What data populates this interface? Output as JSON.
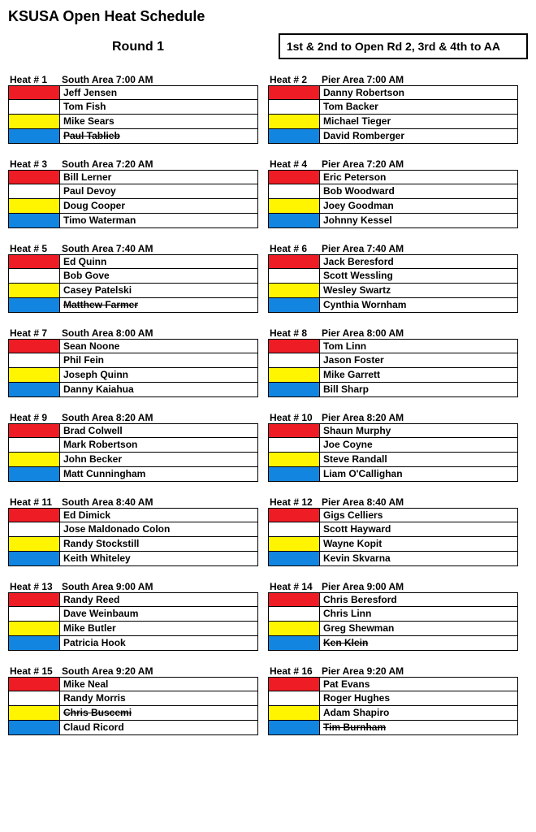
{
  "title": "KSUSA Open Heat Schedule",
  "round_label": "Round 1",
  "advancement_text": "1st & 2nd to Open Rd 2, 3rd & 4th to AA",
  "heat_label_prefix": "Heat #",
  "colors": {
    "red": "#ee1c25",
    "white": "#ffffff",
    "yellow": "#fff500",
    "blue": "#1185e0"
  },
  "row_colors": [
    "red",
    "white",
    "yellow",
    "blue"
  ],
  "label_fontsize": 12,
  "title_fontsize": 18,
  "heats": [
    {
      "num": 1,
      "area": "South Area",
      "time": "7:00 AM",
      "riders": [
        {
          "name": "Jeff Jensen",
          "strike": false
        },
        {
          "name": "Tom Fish",
          "strike": false
        },
        {
          "name": "Mike Sears",
          "strike": false
        },
        {
          "name": "Paul Tablieb",
          "strike": true
        }
      ]
    },
    {
      "num": 2,
      "area": "Pier Area",
      "time": "7:00 AM",
      "riders": [
        {
          "name": "Danny Robertson",
          "strike": false
        },
        {
          "name": "Tom Backer",
          "strike": false
        },
        {
          "name": "Michael Tieger",
          "strike": false
        },
        {
          "name": "David Romberger",
          "strike": false
        }
      ]
    },
    {
      "num": 3,
      "area": "South Area",
      "time": "7:20 AM",
      "riders": [
        {
          "name": "Bill Lerner",
          "strike": false
        },
        {
          "name": "Paul Devoy",
          "strike": false
        },
        {
          "name": "Doug Cooper",
          "strike": false
        },
        {
          "name": "Timo Waterman",
          "strike": false
        }
      ]
    },
    {
      "num": 4,
      "area": "Pier Area",
      "time": "7:20 AM",
      "riders": [
        {
          "name": "Eric Peterson",
          "strike": false
        },
        {
          "name": "Bob Woodward",
          "strike": false
        },
        {
          "name": "Joey Goodman",
          "strike": false
        },
        {
          "name": "Johnny Kessel",
          "strike": false
        }
      ]
    },
    {
      "num": 5,
      "area": "South Area",
      "time": "7:40 AM",
      "riders": [
        {
          "name": "Ed Quinn",
          "strike": false
        },
        {
          "name": "Bob Gove",
          "strike": false
        },
        {
          "name": "Casey Patelski",
          "strike": false
        },
        {
          "name": "Matthew Farmer",
          "strike": true
        }
      ]
    },
    {
      "num": 6,
      "area": "Pier Area",
      "time": "7:40 AM",
      "riders": [
        {
          "name": "Jack Beresford",
          "strike": false
        },
        {
          "name": "Scott Wessling",
          "strike": false
        },
        {
          "name": "Wesley Swartz",
          "strike": false
        },
        {
          "name": "Cynthia Wornham",
          "strike": false
        }
      ]
    },
    {
      "num": 7,
      "area": "South Area",
      "time": "8:00 AM",
      "riders": [
        {
          "name": "Sean Noone",
          "strike": false
        },
        {
          "name": "Phil Fein",
          "strike": false
        },
        {
          "name": "Joseph Quinn",
          "strike": false
        },
        {
          "name": "Danny Kaiahua",
          "strike": false
        }
      ]
    },
    {
      "num": 8,
      "area": "Pier Area",
      "time": "8:00 AM",
      "riders": [
        {
          "name": "Tom Linn",
          "strike": false
        },
        {
          "name": "Jason Foster",
          "strike": false
        },
        {
          "name": "Mike Garrett",
          "strike": false
        },
        {
          "name": "Bill Sharp",
          "strike": false
        }
      ]
    },
    {
      "num": 9,
      "area": "South Area",
      "time": "8:20 AM",
      "riders": [
        {
          "name": "Brad Colwell",
          "strike": false
        },
        {
          "name": "Mark Robertson",
          "strike": false
        },
        {
          "name": "John Becker",
          "strike": false
        },
        {
          "name": "Matt Cunningham",
          "strike": false
        }
      ]
    },
    {
      "num": 10,
      "area": "Pier Area",
      "time": "8:20 AM",
      "riders": [
        {
          "name": "Shaun Murphy",
          "strike": false
        },
        {
          "name": "Joe Coyne",
          "strike": false
        },
        {
          "name": "Steve Randall",
          "strike": false
        },
        {
          "name": "Liam O'Callighan",
          "strike": false
        }
      ]
    },
    {
      "num": 11,
      "area": "South Area",
      "time": "8:40 AM",
      "riders": [
        {
          "name": "Ed Dimick",
          "strike": false
        },
        {
          "name": "Jose Maldonado Colon",
          "strike": false
        },
        {
          "name": "Randy Stockstill",
          "strike": false
        },
        {
          "name": "Keith Whiteley",
          "strike": false
        }
      ]
    },
    {
      "num": 12,
      "area": "Pier Area",
      "time": "8:40 AM",
      "riders": [
        {
          "name": "Gigs Celliers",
          "strike": false
        },
        {
          "name": "Scott Hayward",
          "strike": false
        },
        {
          "name": "Wayne Kopit",
          "strike": false
        },
        {
          "name": "Kevin Skvarna",
          "strike": false
        }
      ]
    },
    {
      "num": 13,
      "area": "South Area",
      "time": "9:00 AM",
      "riders": [
        {
          "name": "Randy Reed",
          "strike": false
        },
        {
          "name": "Dave Weinbaum",
          "strike": false
        },
        {
          "name": "Mike Butler",
          "strike": false
        },
        {
          "name": "Patricia Hook",
          "strike": false
        }
      ]
    },
    {
      "num": 14,
      "area": "Pier Area",
      "time": "9:00 AM",
      "riders": [
        {
          "name": "Chris Beresford",
          "strike": false
        },
        {
          "name": "Chris Linn",
          "strike": false
        },
        {
          "name": "Greg Shewman",
          "strike": false
        },
        {
          "name": "Ken Klein",
          "strike": true
        }
      ]
    },
    {
      "num": 15,
      "area": "South Area",
      "time": "9:20 AM",
      "riders": [
        {
          "name": "Mike Neal",
          "strike": false
        },
        {
          "name": "Randy Morris",
          "strike": false
        },
        {
          "name": "Chris Buscemi",
          "strike": true
        },
        {
          "name": "Claud Ricord",
          "strike": false
        }
      ]
    },
    {
      "num": 16,
      "area": "Pier Area",
      "time": "9:20 AM",
      "riders": [
        {
          "name": "Pat Evans",
          "strike": false
        },
        {
          "name": "Roger Hughes",
          "strike": false
        },
        {
          "name": "Adam Shapiro",
          "strike": false
        },
        {
          "name": "Tim Burnham",
          "strike": true
        }
      ]
    }
  ]
}
